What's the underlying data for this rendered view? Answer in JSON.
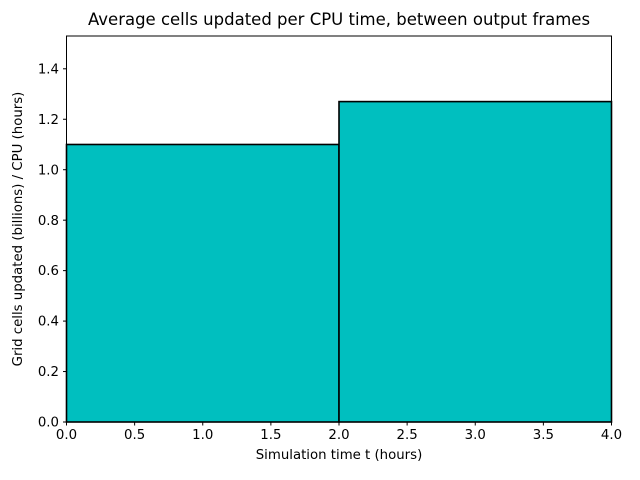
{
  "title": "Average cells updated per CPU time, between output frames",
  "chart_data": {
    "type": "bar",
    "subtype": "histogram-step",
    "title": "Average cells updated per CPU time, between output frames",
    "xlabel": "Simulation time t (hours)",
    "ylabel": "Grid cells updated (billions) / CPU (hours)",
    "bin_edges": [
      0,
      2,
      4
    ],
    "values": [
      1.1,
      1.27
    ],
    "xlim": [
      0,
      4
    ],
    "ylim": [
      0,
      1.53
    ],
    "xticks": [
      0,
      0.5,
      1.0,
      1.5,
      2.0,
      2.5,
      3.0,
      3.5,
      4.0
    ],
    "xtick_labels": [
      "0.0",
      "0.5",
      "1.0",
      "1.5",
      "2.0",
      "2.5",
      "3.0",
      "3.5",
      "4.0"
    ],
    "yticks": [
      0,
      0.2,
      0.4,
      0.6,
      0.8,
      1.0,
      1.2,
      1.4
    ],
    "ytick_labels": [
      "0.0",
      "0.2",
      "0.4",
      "0.6",
      "0.8",
      "1.0",
      "1.2",
      "1.4"
    ],
    "bar_color": "#00bfbf",
    "edge_color": "#000000",
    "axis_color": "#000000",
    "background": "#ffffff",
    "grid": "off",
    "legend": "none"
  }
}
